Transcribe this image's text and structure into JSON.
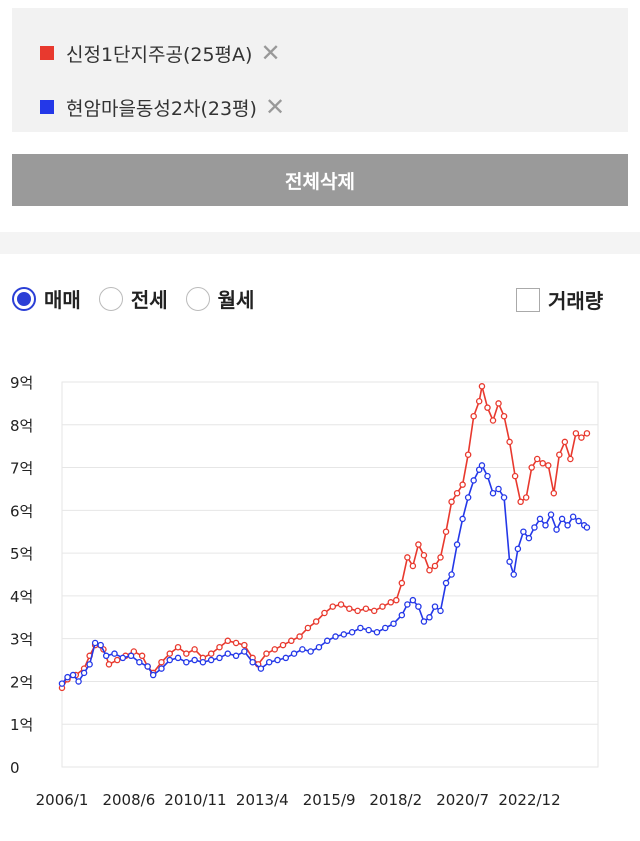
{
  "compare": {
    "items": [
      {
        "label": "신정1단지주공(25평A)",
        "color": "#e8392e"
      },
      {
        "label": "현암마을동성2차(23평)",
        "color": "#2438e8"
      }
    ],
    "remove_symbol": "✕"
  },
  "delete_all_label": "전체삭제",
  "trade_types": [
    {
      "label": "매매",
      "selected": true
    },
    {
      "label": "전세",
      "selected": false
    },
    {
      "label": "월세",
      "selected": false
    }
  ],
  "volume_label": "거래량",
  "chart_data": {
    "type": "line",
    "ylim": [
      0,
      9
    ],
    "yticks": [
      {
        "v": 0,
        "label": "0"
      },
      {
        "v": 1,
        "label": "1억"
      },
      {
        "v": 2,
        "label": "2억"
      },
      {
        "v": 3,
        "label": "3억"
      },
      {
        "v": 4,
        "label": "4억"
      },
      {
        "v": 5,
        "label": "5억"
      },
      {
        "v": 6,
        "label": "6억"
      },
      {
        "v": 7,
        "label": "7억"
      },
      {
        "v": 8,
        "label": "8억"
      },
      {
        "v": 9,
        "label": "9억"
      }
    ],
    "xlim": [
      2006.0,
      2025.4
    ],
    "xticks": [
      {
        "v": 2006.0,
        "label": "2006/1"
      },
      {
        "v": 2008.42,
        "label": "2008/6"
      },
      {
        "v": 2010.83,
        "label": "2010/11"
      },
      {
        "v": 2013.25,
        "label": "2013/4"
      },
      {
        "v": 2015.67,
        "label": "2015/9"
      },
      {
        "v": 2018.08,
        "label": "2018/2"
      },
      {
        "v": 2020.5,
        "label": "2020/7"
      },
      {
        "v": 2022.92,
        "label": "2022/12"
      }
    ],
    "grid": true,
    "series": [
      {
        "name": "신정1단지주공(25평A)",
        "color": "#e8392e",
        "points": [
          [
            2006.0,
            1.85
          ],
          [
            2006.2,
            2.05
          ],
          [
            2006.5,
            2.15
          ],
          [
            2006.8,
            2.3
          ],
          [
            2007.0,
            2.6
          ],
          [
            2007.2,
            2.85
          ],
          [
            2007.5,
            2.75
          ],
          [
            2007.7,
            2.4
          ],
          [
            2008.0,
            2.5
          ],
          [
            2008.3,
            2.6
          ],
          [
            2008.6,
            2.7
          ],
          [
            2008.9,
            2.6
          ],
          [
            2009.1,
            2.35
          ],
          [
            2009.3,
            2.2
          ],
          [
            2009.6,
            2.45
          ],
          [
            2009.9,
            2.65
          ],
          [
            2010.2,
            2.8
          ],
          [
            2010.5,
            2.65
          ],
          [
            2010.8,
            2.75
          ],
          [
            2011.1,
            2.55
          ],
          [
            2011.4,
            2.65
          ],
          [
            2011.7,
            2.8
          ],
          [
            2012.0,
            2.95
          ],
          [
            2012.3,
            2.9
          ],
          [
            2012.6,
            2.85
          ],
          [
            2012.9,
            2.55
          ],
          [
            2013.1,
            2.4
          ],
          [
            2013.4,
            2.65
          ],
          [
            2013.7,
            2.75
          ],
          [
            2014.0,
            2.85
          ],
          [
            2014.3,
            2.95
          ],
          [
            2014.6,
            3.05
          ],
          [
            2014.9,
            3.25
          ],
          [
            2015.2,
            3.4
          ],
          [
            2015.5,
            3.6
          ],
          [
            2015.8,
            3.75
          ],
          [
            2016.1,
            3.8
          ],
          [
            2016.4,
            3.7
          ],
          [
            2016.7,
            3.65
          ],
          [
            2017.0,
            3.7
          ],
          [
            2017.3,
            3.65
          ],
          [
            2017.6,
            3.75
          ],
          [
            2017.9,
            3.85
          ],
          [
            2018.1,
            3.9
          ],
          [
            2018.3,
            4.3
          ],
          [
            2018.5,
            4.9
          ],
          [
            2018.7,
            4.7
          ],
          [
            2018.9,
            5.2
          ],
          [
            2019.1,
            4.95
          ],
          [
            2019.3,
            4.6
          ],
          [
            2019.5,
            4.7
          ],
          [
            2019.7,
            4.9
          ],
          [
            2019.9,
            5.5
          ],
          [
            2020.1,
            6.2
          ],
          [
            2020.3,
            6.4
          ],
          [
            2020.5,
            6.6
          ],
          [
            2020.7,
            7.3
          ],
          [
            2020.9,
            8.2
          ],
          [
            2021.1,
            8.55
          ],
          [
            2021.2,
            8.9
          ],
          [
            2021.4,
            8.4
          ],
          [
            2021.6,
            8.1
          ],
          [
            2021.8,
            8.5
          ],
          [
            2022.0,
            8.2
          ],
          [
            2022.2,
            7.6
          ],
          [
            2022.4,
            6.8
          ],
          [
            2022.6,
            6.2
          ],
          [
            2022.8,
            6.3
          ],
          [
            2023.0,
            7.0
          ],
          [
            2023.2,
            7.2
          ],
          [
            2023.4,
            7.1
          ],
          [
            2023.6,
            7.05
          ],
          [
            2023.8,
            6.4
          ],
          [
            2024.0,
            7.3
          ],
          [
            2024.2,
            7.6
          ],
          [
            2024.4,
            7.2
          ],
          [
            2024.6,
            7.8
          ],
          [
            2024.8,
            7.7
          ],
          [
            2025.0,
            7.8
          ]
        ]
      },
      {
        "name": "현암마을동성2차(23평)",
        "color": "#2438e8",
        "points": [
          [
            2006.0,
            1.95
          ],
          [
            2006.2,
            2.1
          ],
          [
            2006.4,
            2.15
          ],
          [
            2006.6,
            2.0
          ],
          [
            2006.8,
            2.2
          ],
          [
            2007.0,
            2.4
          ],
          [
            2007.2,
            2.9
          ],
          [
            2007.4,
            2.85
          ],
          [
            2007.6,
            2.6
          ],
          [
            2007.9,
            2.65
          ],
          [
            2008.2,
            2.55
          ],
          [
            2008.5,
            2.6
          ],
          [
            2008.8,
            2.45
          ],
          [
            2009.1,
            2.35
          ],
          [
            2009.3,
            2.15
          ],
          [
            2009.6,
            2.3
          ],
          [
            2009.9,
            2.5
          ],
          [
            2010.2,
            2.55
          ],
          [
            2010.5,
            2.45
          ],
          [
            2010.8,
            2.5
          ],
          [
            2011.1,
            2.45
          ],
          [
            2011.4,
            2.5
          ],
          [
            2011.7,
            2.55
          ],
          [
            2012.0,
            2.65
          ],
          [
            2012.3,
            2.6
          ],
          [
            2012.6,
            2.7
          ],
          [
            2012.9,
            2.45
          ],
          [
            2013.2,
            2.3
          ],
          [
            2013.5,
            2.45
          ],
          [
            2013.8,
            2.5
          ],
          [
            2014.1,
            2.55
          ],
          [
            2014.4,
            2.65
          ],
          [
            2014.7,
            2.75
          ],
          [
            2015.0,
            2.7
          ],
          [
            2015.3,
            2.8
          ],
          [
            2015.6,
            2.95
          ],
          [
            2015.9,
            3.05
          ],
          [
            2016.2,
            3.1
          ],
          [
            2016.5,
            3.15
          ],
          [
            2016.8,
            3.25
          ],
          [
            2017.1,
            3.2
          ],
          [
            2017.4,
            3.15
          ],
          [
            2017.7,
            3.25
          ],
          [
            2018.0,
            3.35
          ],
          [
            2018.3,
            3.55
          ],
          [
            2018.5,
            3.8
          ],
          [
            2018.7,
            3.9
          ],
          [
            2018.9,
            3.75
          ],
          [
            2019.1,
            3.4
          ],
          [
            2019.3,
            3.5
          ],
          [
            2019.5,
            3.75
          ],
          [
            2019.7,
            3.65
          ],
          [
            2019.9,
            4.3
          ],
          [
            2020.1,
            4.5
          ],
          [
            2020.3,
            5.2
          ],
          [
            2020.5,
            5.8
          ],
          [
            2020.7,
            6.3
          ],
          [
            2020.9,
            6.7
          ],
          [
            2021.1,
            6.95
          ],
          [
            2021.2,
            7.05
          ],
          [
            2021.4,
            6.8
          ],
          [
            2021.6,
            6.4
          ],
          [
            2021.8,
            6.5
          ],
          [
            2022.0,
            6.3
          ],
          [
            2022.2,
            4.8
          ],
          [
            2022.35,
            4.5
          ],
          [
            2022.5,
            5.1
          ],
          [
            2022.7,
            5.5
          ],
          [
            2022.9,
            5.35
          ],
          [
            2023.1,
            5.6
          ],
          [
            2023.3,
            5.8
          ],
          [
            2023.5,
            5.65
          ],
          [
            2023.7,
            5.9
          ],
          [
            2023.9,
            5.55
          ],
          [
            2024.1,
            5.8
          ],
          [
            2024.3,
            5.65
          ],
          [
            2024.5,
            5.85
          ],
          [
            2024.7,
            5.75
          ],
          [
            2024.9,
            5.65
          ],
          [
            2025.0,
            5.6
          ]
        ]
      }
    ]
  }
}
